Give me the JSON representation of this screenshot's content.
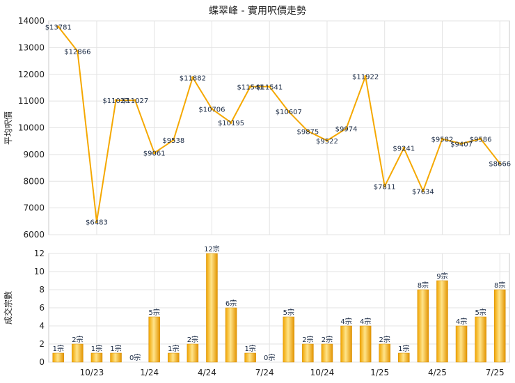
{
  "chart_data": [
    {
      "type": "line",
      "title": "蝶翠峰 - 實用呎價走勢",
      "ylabel": "平均呎價",
      "ylim": [
        6000,
        14000
      ],
      "yticks": [
        6000,
        7000,
        8000,
        9000,
        10000,
        11000,
        12000,
        13000,
        14000
      ],
      "color": "#f5a800",
      "points": [
        13781,
        12866,
        6483,
        11027,
        11027,
        9061,
        9538,
        11882,
        10706,
        10195,
        11541,
        11541,
        10607,
        9875,
        9522,
        9974,
        11922,
        7811,
        9241,
        7634,
        9582,
        9407,
        9586,
        8666
      ],
      "labels": [
        "$13781",
        "$12866",
        "$6483",
        "$11027",
        "$11027",
        "$9061",
        "$9538",
        "$11882",
        "$10706",
        "$10195",
        "$11541",
        "$11541",
        "$10607",
        "$9875",
        "$9522",
        "$9974",
        "$11922",
        "$7811",
        "$9241",
        "$7634",
        "$9582",
        "$9407",
        "$9586",
        "$8666"
      ]
    },
    {
      "type": "bar",
      "ylabel": "成交宗數",
      "ylim": [
        0,
        12
      ],
      "yticks": [
        0,
        2,
        4,
        6,
        8,
        10,
        12
      ],
      "color": "#f5a800",
      "values": [
        1,
        2,
        1,
        1,
        0,
        5,
        1,
        2,
        12,
        6,
        1,
        0,
        5,
        2,
        2,
        4,
        4,
        2,
        1,
        8,
        9,
        4,
        5,
        8
      ],
      "labels": [
        "1宗",
        "2宗",
        "1宗",
        "1宗",
        "0宗",
        "5宗",
        "1宗",
        "2宗",
        "12宗",
        "6宗",
        "1宗",
        "0宗",
        "5宗",
        "2宗",
        "2宗",
        "4宗",
        "4宗",
        "2宗",
        "1宗",
        "8宗",
        "9宗",
        "4宗",
        "5宗",
        "8宗"
      ],
      "xticks": [
        {
          "index": 2.5,
          "label": "10/23"
        },
        {
          "index": 5.5,
          "label": "1/24"
        },
        {
          "index": 8.5,
          "label": "4/24"
        },
        {
          "index": 11.5,
          "label": "7/24"
        },
        {
          "index": 14.5,
          "label": "10/24"
        },
        {
          "index": 17.5,
          "label": "1/25"
        },
        {
          "index": 20.5,
          "label": "4/25"
        },
        {
          "index": 23.5,
          "label": "7/25"
        }
      ]
    }
  ]
}
